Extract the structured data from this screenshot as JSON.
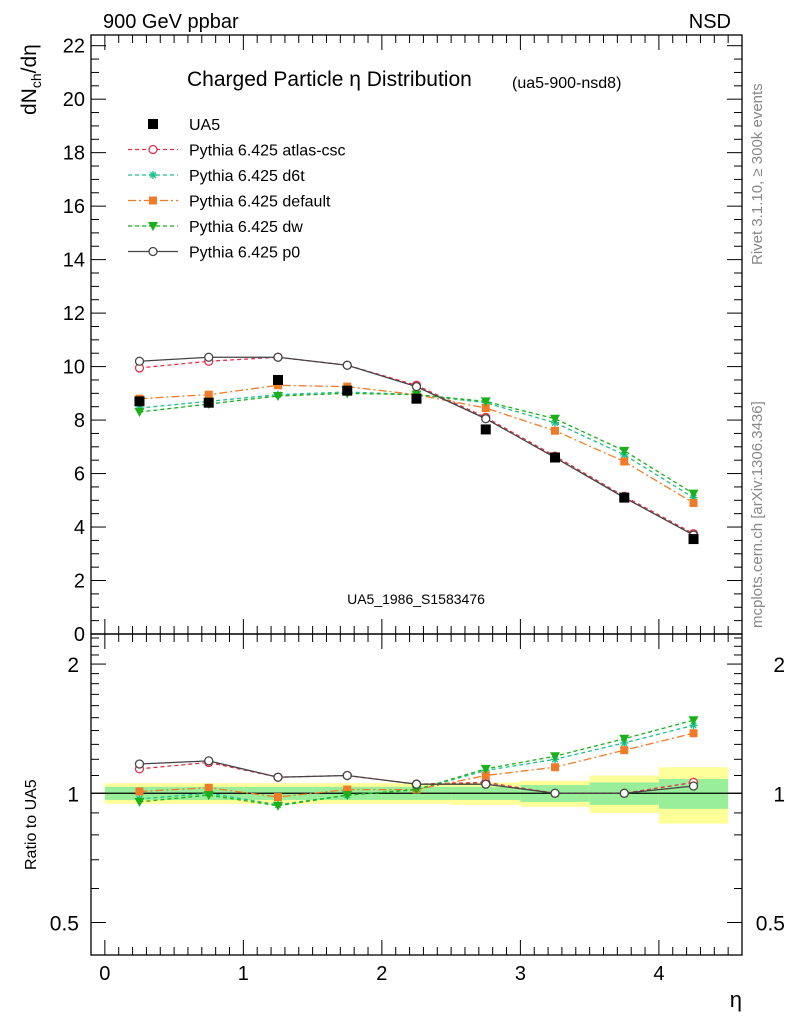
{
  "header": {
    "left": "900 GeV ppbar",
    "right": "NSD"
  },
  "side_labels": {
    "rivet": "Rivet 3.1.10, ≥ 300k events",
    "mcplots": "mcplots.cern.ch [arXiv:1306.3436]"
  },
  "chart_data": [
    {
      "type": "scatter",
      "title": "Charged Particle η Distribution",
      "subtitle": "(ua5-900-nsd8)",
      "watermark": "UA5_1986_S1583476",
      "ylabel": "dN_ch/dη",
      "xlabel": "η",
      "xlim": [
        -0.1,
        4.6
      ],
      "ylim": [
        0,
        22.4
      ],
      "yticks": [
        "0",
        "2",
        "4",
        "6",
        "8",
        "10",
        "12",
        "14",
        "16",
        "18",
        "20",
        "22"
      ],
      "xticks": [
        "0",
        "1",
        "2",
        "3",
        "4"
      ],
      "legend_position": "top-left",
      "x": [
        0.25,
        0.75,
        1.25,
        1.75,
        2.25,
        2.75,
        3.25,
        3.75,
        4.25
      ],
      "series": [
        {
          "name": "UA5",
          "color": "#000000",
          "marker": "square-filled",
          "dash": "none",
          "line": false,
          "values": [
            8.7,
            8.65,
            9.5,
            9.1,
            8.8,
            7.65,
            6.6,
            5.1,
            3.55
          ]
        },
        {
          "name": "Pythia 6.425 atlas-csc",
          "color": "#e8304a",
          "marker": "circle-open",
          "dash": "4,3",
          "line": true,
          "values": [
            9.95,
            10.2,
            10.35,
            10.05,
            9.3,
            8.1,
            6.65,
            5.15,
            3.75
          ]
        },
        {
          "name": "Pythia 6.425 d6t",
          "color": "#1fc08a",
          "marker": "star",
          "dash": "4,3",
          "line": true,
          "values": [
            8.45,
            8.7,
            8.95,
            9.05,
            8.95,
            8.65,
            7.9,
            6.7,
            5.1
          ]
        },
        {
          "name": "Pythia 6.425 default",
          "color": "#f07b28",
          "marker": "square-filled",
          "dash": "8,3,2,3",
          "line": true,
          "values": [
            8.8,
            8.95,
            9.3,
            9.25,
            8.95,
            8.45,
            7.6,
            6.45,
            4.9
          ]
        },
        {
          "name": "Pythia 6.425 dw",
          "color": "#19b019",
          "marker": "triangle-down",
          "dash": "4,3",
          "line": true,
          "values": [
            8.3,
            8.6,
            8.9,
            9.0,
            8.95,
            8.7,
            8.05,
            6.85,
            5.25
          ]
        },
        {
          "name": "Pythia 6.425 p0",
          "color": "#444444",
          "marker": "circle-open",
          "dash": "none",
          "line": true,
          "values": [
            10.2,
            10.35,
            10.35,
            10.05,
            9.25,
            8.05,
            6.6,
            5.1,
            3.7
          ]
        }
      ]
    },
    {
      "type": "scatter",
      "ylabel": "Ratio to UA5",
      "xlabel": "η",
      "xlim": [
        -0.1,
        4.6
      ],
      "ylim": [
        0.42,
        2.35
      ],
      "scale": "log",
      "ytick_labels": [
        "0.5",
        "1",
        "2"
      ],
      "ytick_values": [
        0.5,
        1,
        2
      ],
      "xticks": [
        "0",
        "1",
        "2",
        "3",
        "4"
      ],
      "x": [
        0.25,
        0.75,
        1.25,
        1.75,
        2.25,
        2.75,
        3.25,
        3.75,
        4.25
      ],
      "band_bins": [
        0.0,
        0.5,
        1.0,
        1.5,
        2.0,
        2.5,
        3.0,
        3.5,
        4.0,
        4.5
      ],
      "band_inner": [
        0.035,
        0.035,
        0.035,
        0.035,
        0.035,
        0.035,
        0.045,
        0.06,
        0.08
      ],
      "band_outer": [
        0.055,
        0.055,
        0.055,
        0.055,
        0.055,
        0.06,
        0.07,
        0.1,
        0.15
      ],
      "series": [
        {
          "name": "Pythia 6.425 atlas-csc",
          "color": "#e8304a",
          "marker": "circle-open",
          "dash": "4,3",
          "values": [
            1.14,
            1.18,
            1.09,
            1.1,
            1.05,
            1.06,
            1.0,
            1.0,
            1.06
          ]
        },
        {
          "name": "Pythia 6.425 d6t",
          "color": "#1fc08a",
          "marker": "star",
          "dash": "4,3",
          "values": [
            0.97,
            1.0,
            0.94,
            0.99,
            1.02,
            1.13,
            1.2,
            1.31,
            1.44
          ]
        },
        {
          "name": "Pythia 6.425 default",
          "color": "#f07b28",
          "marker": "square-filled",
          "dash": "8,3,2,3",
          "values": [
            1.01,
            1.03,
            0.98,
            1.02,
            1.02,
            1.1,
            1.15,
            1.26,
            1.38
          ]
        },
        {
          "name": "Pythia 6.425 dw",
          "color": "#19b019",
          "marker": "triangle-down",
          "dash": "4,3",
          "values": [
            0.955,
            0.99,
            0.935,
            0.99,
            1.02,
            1.14,
            1.22,
            1.34,
            1.48
          ]
        },
        {
          "name": "Pythia 6.425 p0",
          "color": "#444444",
          "marker": "circle-open",
          "dash": "none",
          "values": [
            1.17,
            1.19,
            1.09,
            1.1,
            1.05,
            1.05,
            1.0,
            1.0,
            1.04
          ]
        }
      ]
    }
  ]
}
